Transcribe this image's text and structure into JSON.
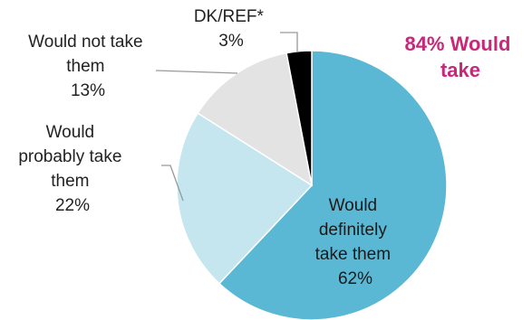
{
  "chart_data": {
    "type": "pie",
    "slices": [
      {
        "label_lines": [
          "Would",
          "definitely",
          "take them"
        ],
        "value": 62,
        "value_text": "62%",
        "color": "#5bb8d4"
      },
      {
        "label_lines": [
          "Would",
          "probably take",
          "them"
        ],
        "value": 22,
        "value_text": "22%",
        "color": "#c5e5ef"
      },
      {
        "label_lines": [
          "Would not take",
          "them"
        ],
        "value": 13,
        "value_text": "13%",
        "color": "#e3e3e3"
      },
      {
        "label_lines": [
          "DK/REF*"
        ],
        "value": 3,
        "value_text": "3%",
        "color": "#000000"
      }
    ],
    "callout": {
      "lines": [
        "84% Would",
        "take"
      ],
      "color": "#c8287a"
    }
  }
}
